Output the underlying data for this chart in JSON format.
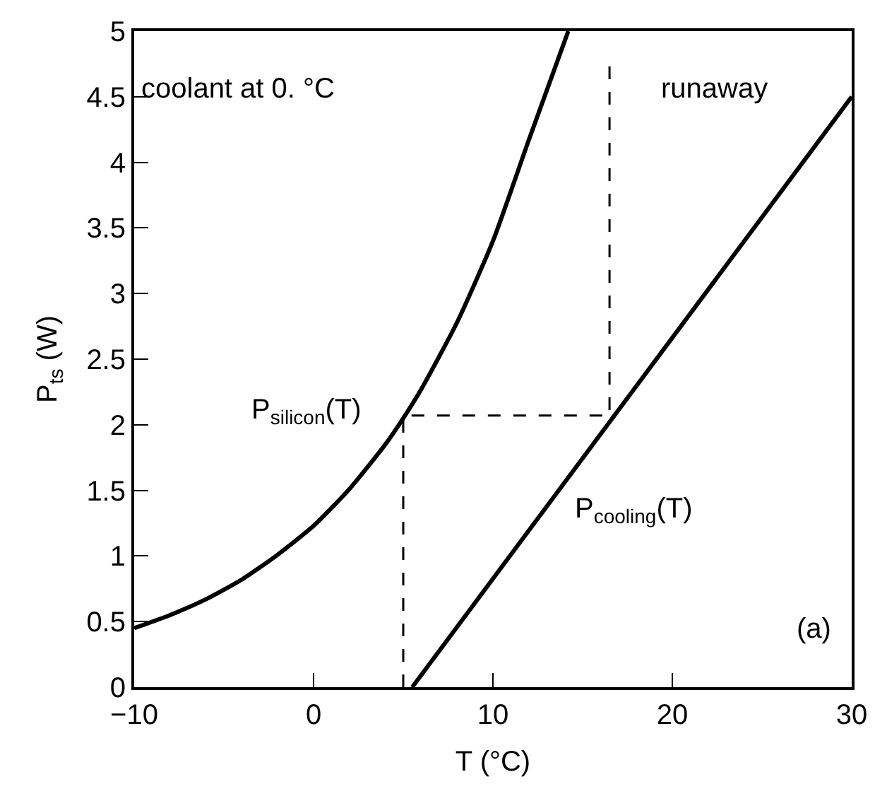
{
  "chart_data": {
    "type": "line",
    "xlabel": "T (°C)",
    "ylabel": "P$_{ts}$ (W)",
    "xlim": [
      -10,
      30
    ],
    "xticks": [
      {
        "value": -10,
        "label": "−10"
      },
      0,
      10,
      20,
      30
    ],
    "ylim": [
      0,
      5
    ],
    "yticks": [
      0,
      0.5,
      1,
      1.5,
      2,
      2.5,
      3,
      3.5,
      4,
      4.5,
      5
    ],
    "marker": "none",
    "series": [
      {
        "color": "#000000",
        "x": [
          -10,
          -8,
          -6,
          -4,
          -2,
          0,
          2,
          4,
          5,
          6,
          8,
          10,
          12,
          14.2
        ],
        "values": [
          0.45,
          0.55,
          0.67,
          0.82,
          1.01,
          1.23,
          1.51,
          1.85,
          2.05,
          2.27,
          2.78,
          3.4,
          4.17,
          5.0
        ]
      },
      {
        "color": "#000000",
        "x": [
          5.5,
          30
        ],
        "values": [
          0,
          4.5
        ]
      },
      {
        "color": "#000000",
        "line_style": "dashed",
        "x": [
          5,
          5,
          16.5,
          16.5
        ],
        "values": [
          0,
          2.07,
          2.07,
          4.75
        ]
      }
    ],
    "annotations": [
      "coolant at 0. °C",
      "runaway",
      "(a)",
      "P$_{silicon}$(T)",
      "P$_{cooling}$(T)"
    ]
  }
}
